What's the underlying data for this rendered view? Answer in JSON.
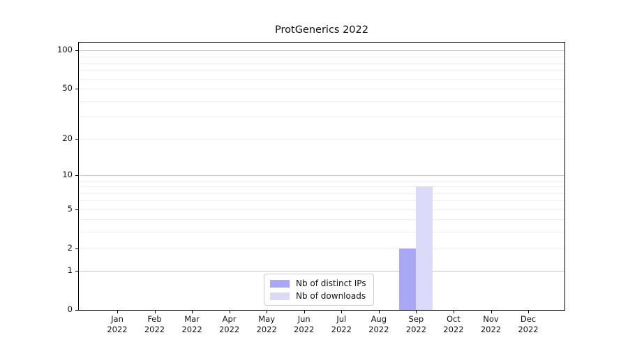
{
  "chart_data": {
    "type": "bar",
    "title": "ProtGenerics 2022",
    "categories": [
      {
        "month": "Jan",
        "year": "2022"
      },
      {
        "month": "Feb",
        "year": "2022"
      },
      {
        "month": "Mar",
        "year": "2022"
      },
      {
        "month": "Apr",
        "year": "2022"
      },
      {
        "month": "May",
        "year": "2022"
      },
      {
        "month": "Jun",
        "year": "2022"
      },
      {
        "month": "Jul",
        "year": "2022"
      },
      {
        "month": "Aug",
        "year": "2022"
      },
      {
        "month": "Sep",
        "year": "2022"
      },
      {
        "month": "Oct",
        "year": "2022"
      },
      {
        "month": "Nov",
        "year": "2022"
      },
      {
        "month": "Dec",
        "year": "2022"
      }
    ],
    "series": [
      {
        "name": "Nb of distinct IPs",
        "color": "#a8a8f4",
        "values": [
          0,
          0,
          0,
          0,
          0,
          0,
          0,
          0,
          2,
          0,
          0,
          0
        ]
      },
      {
        "name": "Nb of downloads",
        "color": "#dbdbf9",
        "values": [
          0,
          0,
          0,
          0,
          0,
          0,
          0,
          0,
          8,
          0,
          0,
          0
        ]
      }
    ],
    "yaxis": {
      "scale": "log1p",
      "min": 0,
      "max": 115,
      "tick_labels": [
        0,
        1,
        2,
        5,
        10,
        20,
        50,
        100
      ],
      "grid_major": [
        1,
        10,
        100
      ],
      "grid_minor": [
        2,
        3,
        4,
        5,
        6,
        7,
        8,
        9,
        20,
        30,
        40,
        50,
        60,
        70,
        80,
        90
      ]
    },
    "legend": {
      "position": "lower center"
    },
    "colors": {
      "grid_major": "#c9c9c9",
      "grid_minor": "#eeeeee",
      "spine": "#000000",
      "background": "#ffffff"
    }
  }
}
